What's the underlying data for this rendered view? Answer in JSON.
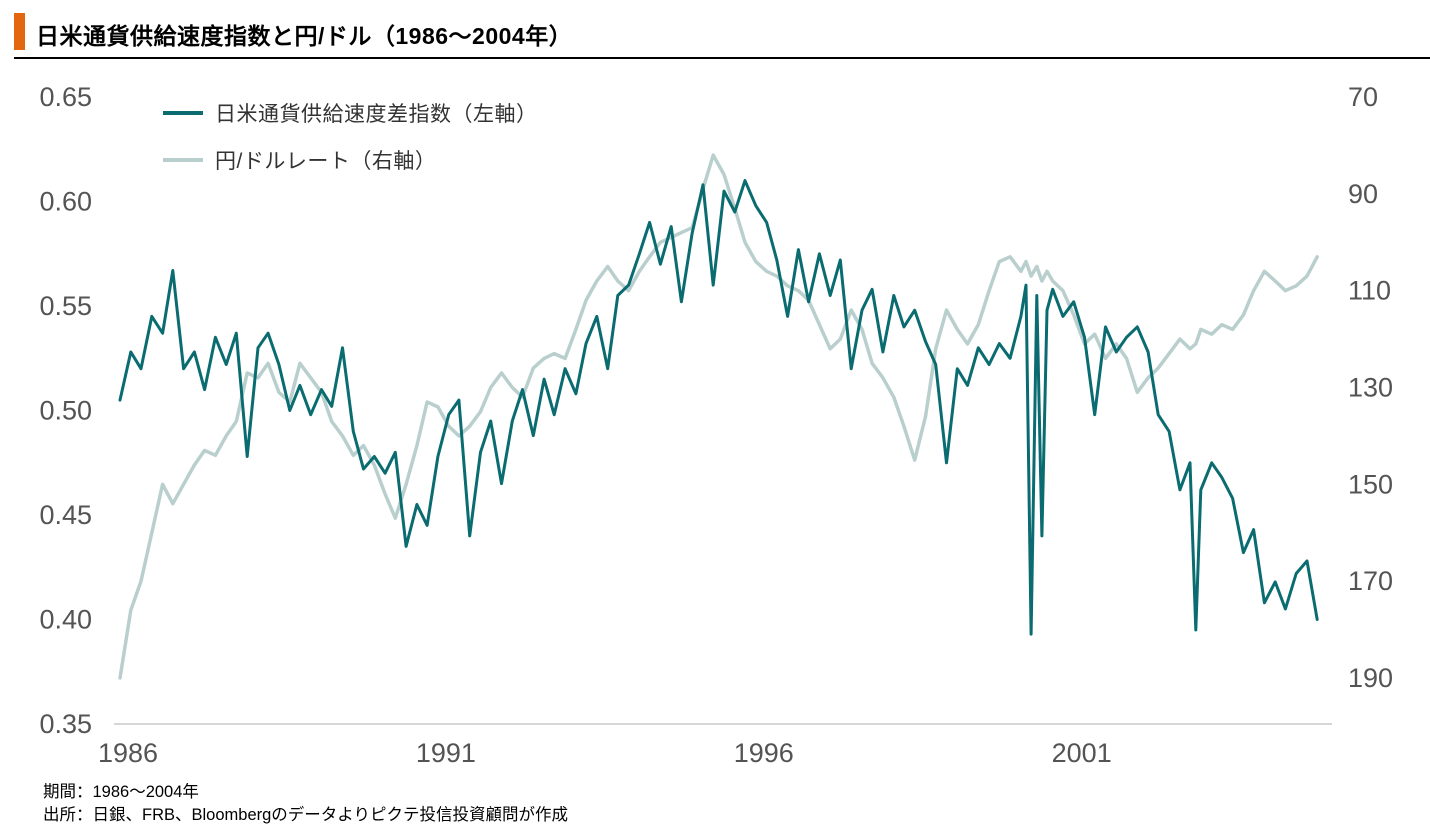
{
  "header": {
    "title": "日米通貨供給速度指数と円/ドル（1986～2004年）",
    "accent_color": "#E2670E"
  },
  "legend": [
    {
      "label": "日米通貨供給速度差指数（左軸）",
      "color": "#0A6C70"
    },
    {
      "label": "円/ドルレート（右軸）",
      "color": "#B9CFCE"
    }
  ],
  "footer": {
    "period": "期間：1986～2004年",
    "source": "出所：日銀、FRB、Bloombergのデータよりピクテ投信投資顧問が作成"
  },
  "chart_data": {
    "type": "line",
    "title": "日米通貨供給速度指数と円/ドル（1986～2004年）",
    "x_axis": {
      "range": [
        1986,
        2005
      ],
      "ticks": [
        1986,
        1991,
        1996,
        2001
      ],
      "tick_labels": [
        "1986",
        "1991",
        "1996",
        "2001"
      ]
    },
    "y_axis_left": {
      "label": "日米通貨供給速度差指数",
      "range": [
        0.35,
        0.65
      ],
      "ticks": [
        0.65,
        0.6,
        0.55,
        0.5,
        0.45,
        0.4,
        0.35
      ],
      "tick_labels": [
        "0.65",
        "0.60",
        "0.55",
        "0.50",
        "0.45",
        "0.40",
        "0.35"
      ]
    },
    "y_axis_right": {
      "label": "円/ドルレート",
      "range": [
        70,
        190
      ],
      "inverted": true,
      "ticks": [
        70,
        90,
        110,
        130,
        150,
        170,
        190
      ],
      "tick_labels": [
        "70",
        "90",
        "110",
        "130",
        "150",
        "170",
        "190"
      ]
    },
    "grid": false,
    "legend_position": "top-left",
    "series": [
      {
        "name": "円/ドルレート（右軸）",
        "axis": "right",
        "color": "#B9CFCE",
        "width": 3.5,
        "x": [
          1986.0,
          1986.17,
          1986.33,
          1986.5,
          1986.67,
          1986.83,
          1987.0,
          1987.17,
          1987.33,
          1987.5,
          1987.67,
          1987.83,
          1988.0,
          1988.17,
          1988.33,
          1988.5,
          1988.67,
          1988.83,
          1989.0,
          1989.17,
          1989.33,
          1989.5,
          1989.67,
          1989.83,
          1990.0,
          1990.17,
          1990.33,
          1990.5,
          1990.67,
          1990.83,
          1991.0,
          1991.17,
          1991.33,
          1991.5,
          1991.67,
          1991.83,
          1992.0,
          1992.17,
          1992.33,
          1992.5,
          1992.67,
          1992.83,
          1993.0,
          1993.17,
          1993.33,
          1993.5,
          1993.67,
          1993.83,
          1994.0,
          1994.17,
          1994.33,
          1994.5,
          1994.67,
          1994.83,
          1995.0,
          1995.17,
          1995.33,
          1995.5,
          1995.67,
          1995.83,
          1996.0,
          1996.17,
          1996.33,
          1996.5,
          1996.67,
          1996.83,
          1997.0,
          1997.17,
          1997.33,
          1997.5,
          1997.67,
          1997.83,
          1998.0,
          1998.17,
          1998.33,
          1998.5,
          1998.67,
          1998.83,
          1999.0,
          1999.17,
          1999.33,
          1999.5,
          1999.67,
          1999.83,
          2000.0,
          2000.17,
          2000.25,
          2000.33,
          2000.42,
          2000.5,
          2000.58,
          2000.67,
          2000.83,
          2001.0,
          2001.17,
          2001.33,
          2001.5,
          2001.67,
          2001.83,
          2002.0,
          2002.17,
          2002.33,
          2002.5,
          2002.67,
          2002.83,
          2002.92,
          2003.0,
          2003.17,
          2003.33,
          2003.5,
          2003.67,
          2003.83,
          2004.0,
          2004.17,
          2004.33,
          2004.5,
          2004.67,
          2004.83
        ],
        "values": [
          190,
          176,
          170,
          160,
          150,
          154,
          150,
          146,
          143,
          144,
          140,
          137,
          127,
          128,
          125,
          131,
          133,
          125,
          128,
          131,
          137,
          140,
          144,
          142,
          146,
          152,
          157,
          150,
          142,
          133,
          134,
          138,
          140,
          138,
          135,
          130,
          127,
          130,
          132,
          126,
          124,
          123,
          124,
          118,
          112,
          108,
          105,
          108,
          110,
          106,
          103,
          100,
          99,
          98,
          97,
          89,
          82,
          86,
          93,
          100,
          104,
          106,
          107,
          109,
          110,
          112,
          117,
          122,
          120,
          114,
          118,
          125,
          128,
          132,
          138,
          145,
          136,
          122,
          114,
          118,
          121,
          117,
          110,
          104,
          103,
          106,
          104,
          107,
          105,
          108,
          106,
          108,
          110,
          115,
          121,
          119,
          124,
          121,
          124,
          131,
          128,
          126,
          123,
          120,
          122,
          121,
          118,
          119,
          117,
          118,
          115,
          110,
          106,
          108,
          110,
          109,
          107,
          103
        ]
      },
      {
        "name": "日米通貨供給速度差指数（左軸）",
        "axis": "left",
        "color": "#0A6C70",
        "width": 3,
        "x": [
          1986.0,
          1986.17,
          1986.33,
          1986.5,
          1986.67,
          1986.83,
          1987.0,
          1987.17,
          1987.33,
          1987.5,
          1987.67,
          1987.83,
          1988.0,
          1988.17,
          1988.33,
          1988.5,
          1988.67,
          1988.83,
          1989.0,
          1989.17,
          1989.33,
          1989.5,
          1989.67,
          1989.83,
          1990.0,
          1990.17,
          1990.33,
          1990.5,
          1990.67,
          1990.83,
          1991.0,
          1991.17,
          1991.33,
          1991.5,
          1991.67,
          1991.83,
          1992.0,
          1992.17,
          1992.33,
          1992.5,
          1992.67,
          1992.83,
          1993.0,
          1993.17,
          1993.33,
          1993.5,
          1993.67,
          1993.83,
          1994.0,
          1994.17,
          1994.33,
          1994.5,
          1994.67,
          1994.83,
          1995.0,
          1995.17,
          1995.33,
          1995.5,
          1995.67,
          1995.83,
          1996.0,
          1996.17,
          1996.33,
          1996.5,
          1996.67,
          1996.83,
          1997.0,
          1997.17,
          1997.33,
          1997.5,
          1997.67,
          1997.83,
          1998.0,
          1998.17,
          1998.33,
          1998.5,
          1998.67,
          1998.83,
          1999.0,
          1999.17,
          1999.33,
          1999.5,
          1999.67,
          1999.83,
          2000.0,
          2000.17,
          2000.25,
          2000.33,
          2000.42,
          2000.5,
          2000.58,
          2000.67,
          2000.83,
          2001.0,
          2001.17,
          2001.33,
          2001.5,
          2001.67,
          2001.83,
          2002.0,
          2002.17,
          2002.33,
          2002.5,
          2002.67,
          2002.83,
          2002.92,
          2003.0,
          2003.17,
          2003.33,
          2003.5,
          2003.67,
          2003.83,
          2004.0,
          2004.17,
          2004.33,
          2004.5,
          2004.67,
          2004.83
        ],
        "values": [
          0.505,
          0.528,
          0.52,
          0.545,
          0.537,
          0.567,
          0.52,
          0.528,
          0.51,
          0.535,
          0.522,
          0.537,
          0.478,
          0.53,
          0.537,
          0.522,
          0.5,
          0.512,
          0.498,
          0.51,
          0.502,
          0.53,
          0.49,
          0.472,
          0.478,
          0.47,
          0.48,
          0.435,
          0.455,
          0.445,
          0.478,
          0.498,
          0.505,
          0.44,
          0.48,
          0.495,
          0.465,
          0.495,
          0.51,
          0.488,
          0.515,
          0.498,
          0.52,
          0.508,
          0.532,
          0.545,
          0.52,
          0.555,
          0.56,
          0.575,
          0.59,
          0.57,
          0.588,
          0.552,
          0.585,
          0.608,
          0.56,
          0.605,
          0.595,
          0.61,
          0.598,
          0.59,
          0.572,
          0.545,
          0.577,
          0.552,
          0.575,
          0.555,
          0.572,
          0.52,
          0.548,
          0.558,
          0.528,
          0.555,
          0.54,
          0.548,
          0.533,
          0.522,
          0.475,
          0.52,
          0.512,
          0.53,
          0.522,
          0.532,
          0.525,
          0.545,
          0.56,
          0.393,
          0.555,
          0.44,
          0.548,
          0.558,
          0.545,
          0.552,
          0.535,
          0.498,
          0.54,
          0.528,
          0.535,
          0.54,
          0.528,
          0.498,
          0.49,
          0.462,
          0.475,
          0.395,
          0.462,
          0.475,
          0.468,
          0.458,
          0.432,
          0.443,
          0.408,
          0.418,
          0.405,
          0.422,
          0.428,
          0.4
        ]
      }
    ]
  }
}
